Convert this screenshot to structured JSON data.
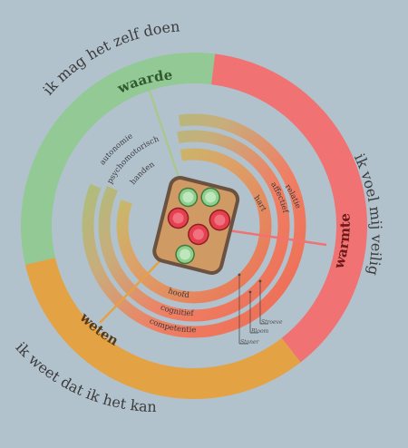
{
  "colors": {
    "background": "#b2c2cd",
    "waarde": "#92c995",
    "warmte": "#f07272",
    "weten": "#e3a244",
    "dark_waarde": "#2f5a2c",
    "dark_warmte": "#6e1a1a",
    "dark_weten": "#5a3a14",
    "text": "#3b3b3b",
    "bread": "#cf9a63",
    "crust": "#6b5140",
    "cucumber": "#8fd08e",
    "tomato": "#e6404f"
  },
  "outer_ring": {
    "waarde": "waarde",
    "warmte": "warmte",
    "weten": "weten"
  },
  "curved_phrases": {
    "top": "ik mag het zelf doen",
    "right": "ik voel mij veilig",
    "bottom": "ik weet dat ik het kan"
  },
  "middle_rings": {
    "left": [
      "autonomie",
      "psychomotorisch",
      "handen"
    ],
    "right": [
      "relatie",
      "affectief",
      "hart"
    ],
    "bottom": [
      "hoofd",
      "cognitief",
      "competentie"
    ]
  },
  "authors": [
    "Stroeve",
    "Bloom",
    "Stoner"
  ],
  "icons": {
    "center": "sandwich-icon"
  }
}
